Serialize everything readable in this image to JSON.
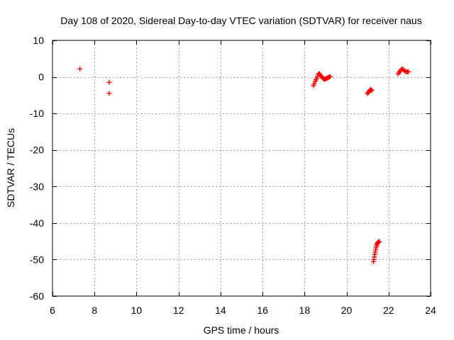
{
  "chart_data": {
    "type": "scatter",
    "title": "Day 108 of 2020, Sidereal Day-to-day VTEC variation (SDTVAR) for receiver naus",
    "xlabel": "GPS time / hours",
    "ylabel": "SDTVAR / TECUs",
    "xlim": [
      6,
      24
    ],
    "ylim": [
      -60,
      10
    ],
    "xticks": [
      6,
      8,
      10,
      12,
      14,
      16,
      18,
      20,
      22,
      24
    ],
    "yticks": [
      10,
      0,
      -10,
      -20,
      -30,
      -40,
      -50,
      -60
    ],
    "grid": true,
    "marker": "+",
    "color": "#ff0000",
    "series": [
      {
        "name": "SDTVAR",
        "points": [
          [
            7.3,
            2.2
          ],
          [
            8.7,
            -1.5
          ],
          [
            8.7,
            -4.5
          ],
          [
            18.42,
            -2.4
          ],
          [
            18.46,
            -1.9
          ],
          [
            18.5,
            -1.3
          ],
          [
            18.54,
            -0.8
          ],
          [
            18.58,
            -0.4
          ],
          [
            18.62,
            0.2
          ],
          [
            18.66,
            0.8
          ],
          [
            18.7,
            0.9
          ],
          [
            18.74,
            0.6
          ],
          [
            18.78,
            0.3
          ],
          [
            18.82,
            0.0
          ],
          [
            18.86,
            -0.3
          ],
          [
            18.9,
            -0.5
          ],
          [
            18.94,
            -0.6
          ],
          [
            18.98,
            -0.6
          ],
          [
            19.02,
            -0.5
          ],
          [
            19.06,
            -0.4
          ],
          [
            19.1,
            -0.3
          ],
          [
            19.14,
            -0.1
          ],
          [
            19.18,
            0.0
          ],
          [
            19.22,
            0.1
          ],
          [
            21.0,
            -4.6
          ],
          [
            21.03,
            -4.3
          ],
          [
            21.06,
            -4.0
          ],
          [
            21.09,
            -3.8
          ],
          [
            21.12,
            -3.6
          ],
          [
            21.15,
            -3.5
          ],
          [
            21.18,
            -3.6
          ],
          [
            21.21,
            -3.7
          ],
          [
            21.28,
            -50.6
          ],
          [
            21.3,
            -50.0
          ],
          [
            21.32,
            -49.3
          ],
          [
            21.34,
            -48.6
          ],
          [
            21.36,
            -48.0
          ],
          [
            21.38,
            -47.4
          ],
          [
            21.4,
            -46.8
          ],
          [
            21.42,
            -46.3
          ],
          [
            21.44,
            -45.9
          ],
          [
            21.46,
            -45.6
          ],
          [
            21.48,
            -45.4
          ],
          [
            21.5,
            -45.3
          ],
          [
            21.52,
            -45.2
          ],
          [
            21.54,
            -45.1
          ],
          [
            21.56,
            -45.1
          ],
          [
            22.45,
            0.8
          ],
          [
            22.5,
            1.2
          ],
          [
            22.55,
            1.6
          ],
          [
            22.6,
            2.0
          ],
          [
            22.65,
            2.2
          ],
          [
            22.7,
            2.0
          ],
          [
            22.75,
            1.7
          ],
          [
            22.8,
            1.5
          ],
          [
            22.85,
            1.4
          ],
          [
            22.9,
            1.4
          ],
          [
            22.95,
            1.4
          ]
        ]
      }
    ]
  }
}
